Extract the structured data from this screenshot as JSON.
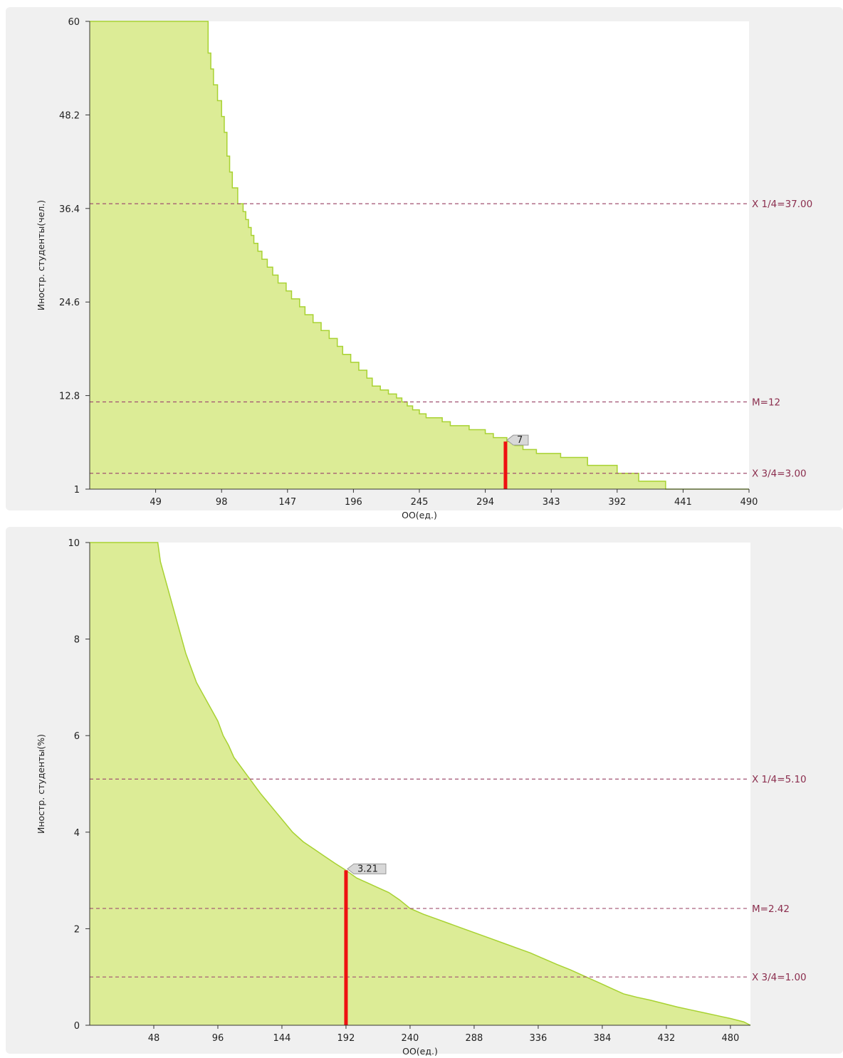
{
  "chart_data": [
    {
      "type": "area",
      "ylabel": "Иностр. студенты(чел.)",
      "xlabel": "ОО(ед.)",
      "ylim": [
        1,
        60
      ],
      "xlim": [
        0,
        490
      ],
      "yticks": [
        "1",
        "12.8",
        "24.6",
        "36.4",
        "48.2",
        "60"
      ],
      "yticks_values": [
        1,
        12.8,
        24.6,
        36.4,
        48.2,
        60
      ],
      "xticks": [
        "49",
        "98",
        "147",
        "196",
        "245",
        "294",
        "343",
        "392",
        "441",
        "490"
      ],
      "xticks_values": [
        49,
        98,
        147,
        196,
        245,
        294,
        343,
        392,
        441,
        490
      ],
      "grid": false,
      "step": true,
      "fill_color": "#dcec96",
      "line_color": "#a8d232",
      "curve": {
        "x": [
          0,
          86,
          88,
          90,
          92,
          95,
          98,
          100,
          102,
          104,
          106,
          110,
          114,
          116,
          118,
          120,
          122,
          125,
          128,
          132,
          136,
          140,
          146,
          150,
          156,
          160,
          166,
          172,
          178,
          184,
          188,
          194,
          200,
          206,
          210,
          216,
          222,
          228,
          232,
          236,
          240,
          245,
          250,
          262,
          268,
          282,
          294,
          300,
          310,
          316,
          322,
          332,
          350,
          370,
          392,
          408,
          428,
          490
        ],
        "y": [
          60,
          60,
          56,
          54,
          52,
          50,
          48,
          46,
          43,
          41,
          39,
          37,
          36,
          35,
          34,
          33,
          32,
          31,
          30,
          29,
          28,
          27,
          26,
          25,
          24,
          23,
          22,
          21,
          20,
          19,
          18,
          17,
          16,
          15,
          14,
          13.5,
          13,
          12.5,
          12,
          11.5,
          11,
          10.5,
          10,
          9.5,
          9,
          8.5,
          8,
          7.5,
          7,
          6.5,
          6,
          5.5,
          5,
          4,
          3,
          2,
          1,
          1
        ]
      },
      "reference_lines": [
        {
          "label": "X 1/4=37.00",
          "y": 37
        },
        {
          "label": "M=12",
          "y": 12
        },
        {
          "label": "X 3/4=3.00",
          "y": 3
        }
      ],
      "highlight": {
        "x": 309,
        "y": 7,
        "label": "7"
      }
    },
    {
      "type": "area",
      "ylabel": "Иностр. студенты(%)",
      "xlabel": "ОО(ед.)",
      "ylim": [
        0,
        10
      ],
      "xlim": [
        0,
        495
      ],
      "yticks": [
        "0",
        "2",
        "4",
        "6",
        "8",
        "10"
      ],
      "yticks_values": [
        0,
        2,
        4,
        6,
        8,
        10
      ],
      "xticks": [
        "48",
        "96",
        "144",
        "192",
        "240",
        "288",
        "336",
        "384",
        "432",
        "480"
      ],
      "xticks_values": [
        48,
        96,
        144,
        192,
        240,
        288,
        336,
        384,
        432,
        480
      ],
      "grid": false,
      "step": false,
      "fill_color": "#dcec96",
      "line_color": "#a8d232",
      "curve": {
        "x": [
          0,
          51,
          53,
          56,
          60,
          64,
          68,
          72,
          76,
          80,
          84,
          88,
          92,
          96,
          100,
          104,
          108,
          112,
          116,
          120,
          124,
          128,
          134,
          140,
          146,
          152,
          160,
          168,
          176,
          184,
          192,
          200,
          208,
          216,
          224,
          232,
          240,
          250,
          260,
          270,
          280,
          290,
          300,
          310,
          320,
          330,
          340,
          350,
          360,
          368,
          376,
          384,
          392,
          400,
          410,
          420,
          430,
          440,
          450,
          460,
          470,
          480,
          490,
          495
        ],
        "y": [
          10,
          10,
          9.6,
          9.3,
          8.9,
          8.5,
          8.1,
          7.7,
          7.4,
          7.1,
          6.9,
          6.7,
          6.5,
          6.3,
          6.0,
          5.8,
          5.55,
          5.4,
          5.25,
          5.1,
          4.95,
          4.8,
          4.6,
          4.4,
          4.2,
          4.0,
          3.8,
          3.65,
          3.5,
          3.35,
          3.21,
          3.05,
          2.95,
          2.85,
          2.75,
          2.6,
          2.42,
          2.3,
          2.2,
          2.1,
          2.0,
          1.9,
          1.8,
          1.7,
          1.6,
          1.5,
          1.38,
          1.26,
          1.15,
          1.05,
          0.95,
          0.85,
          0.75,
          0.65,
          0.58,
          0.52,
          0.45,
          0.38,
          0.32,
          0.26,
          0.2,
          0.14,
          0.07,
          0.0
        ]
      },
      "reference_lines": [
        {
          "label": "X 1/4=5.10",
          "y": 5.1
        },
        {
          "label": "M=2.42",
          "y": 2.42
        },
        {
          "label": "X 3/4=1.00",
          "y": 1.0
        }
      ],
      "highlight": {
        "x": 192,
        "y": 3.21,
        "label": "3.21"
      }
    }
  ]
}
